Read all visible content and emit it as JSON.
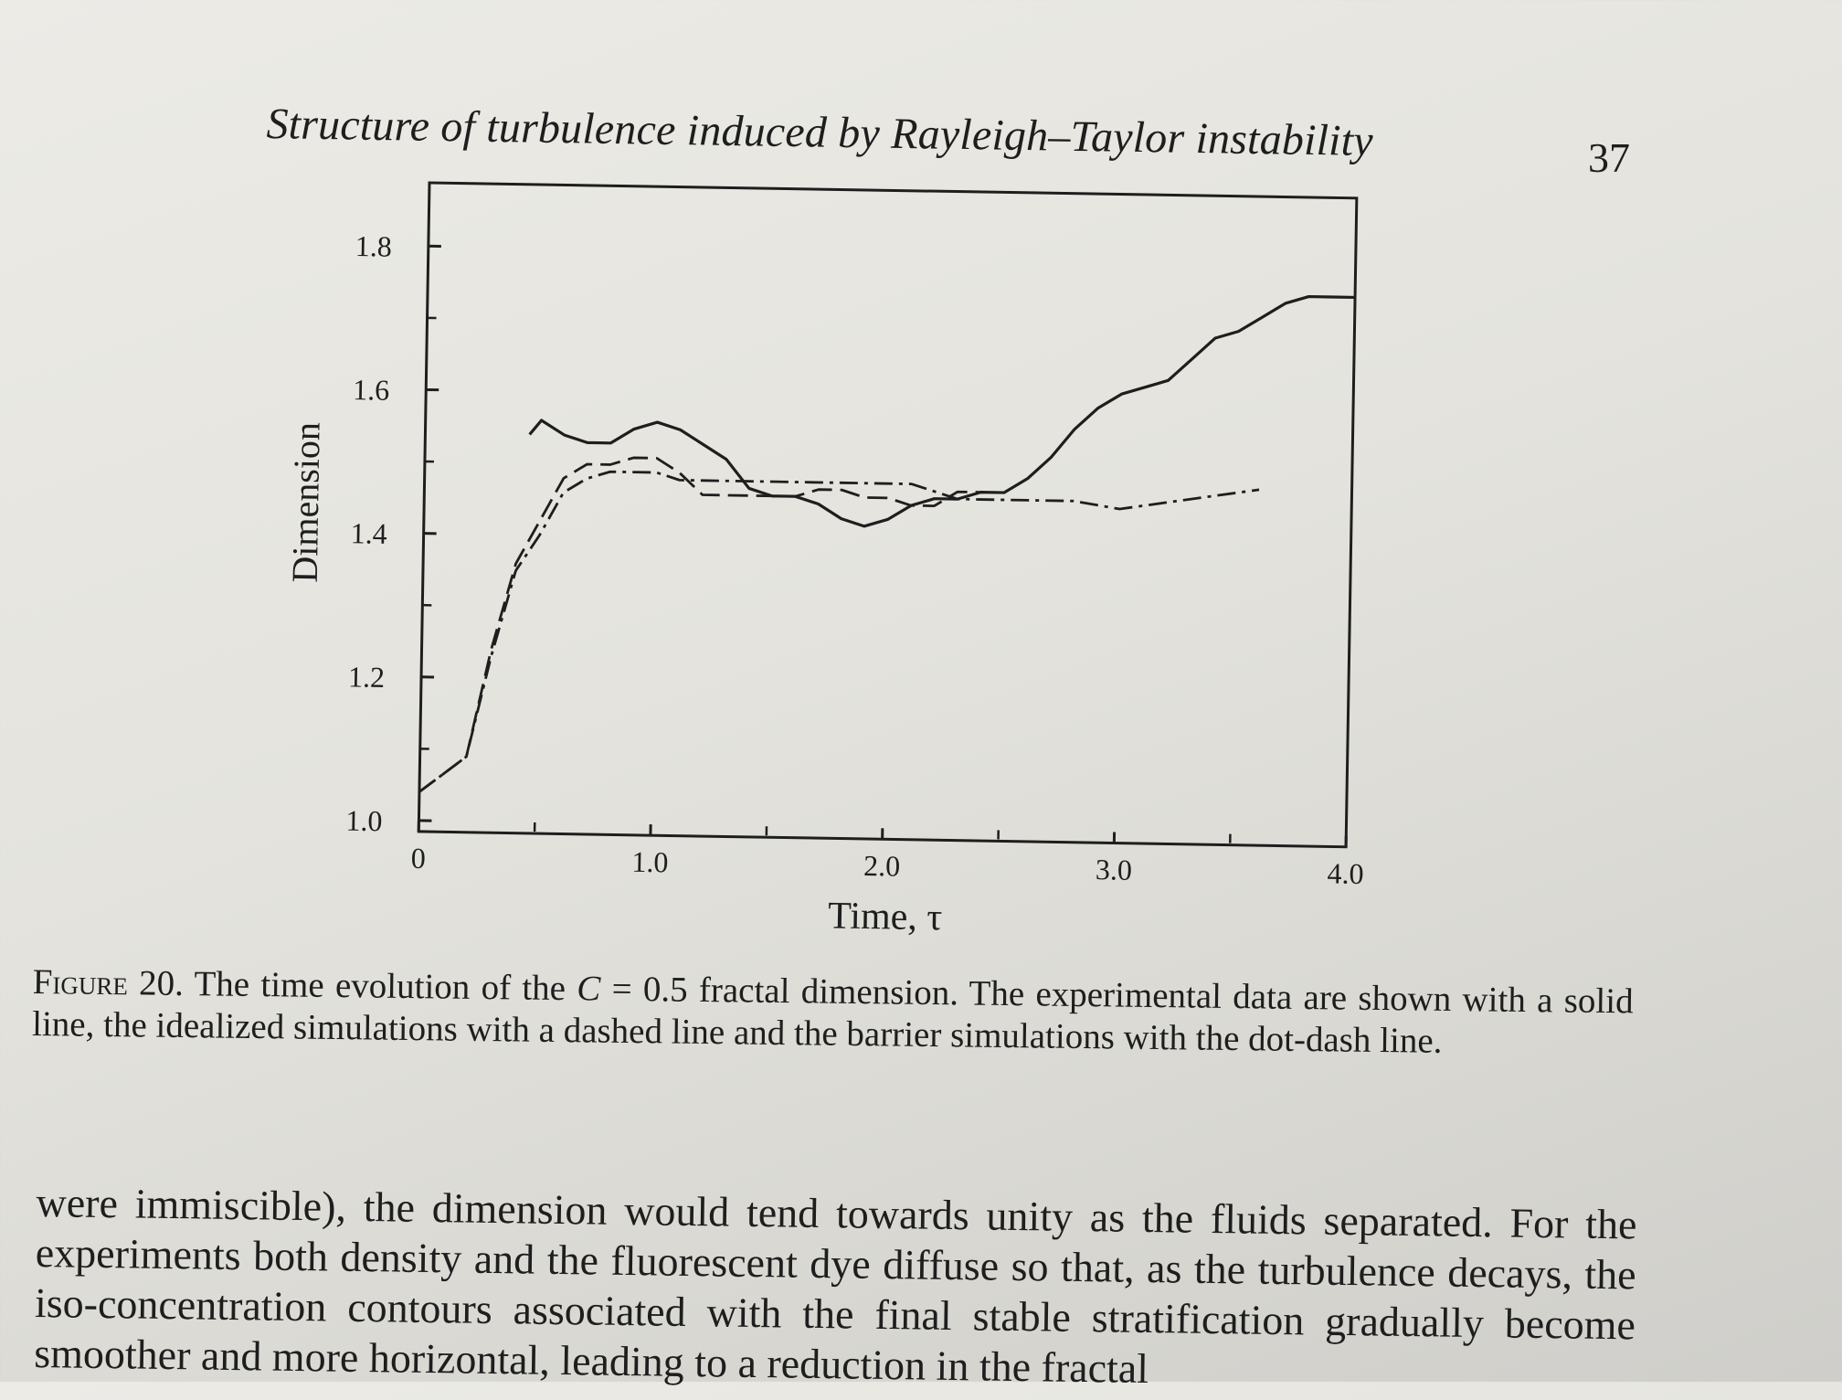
{
  "running_head": "Structure of turbulence induced by Rayleigh–Taylor instability",
  "page_number": "37",
  "caption": {
    "label": "Figure 20.",
    "text_before": " The time evolution of the ",
    "variable": "C",
    "text_after": " = 0.5 fractal dimension. The experimental data are shown with a solid line, the idealized simulations with a dashed line and the barrier simulations with the dot-dash line."
  },
  "body_text": "were immiscible), the dimension would tend towards unity as the fluids separated. For the experiments both density and the fluorescent dye diffuse so that, as the turbulence decays, the iso-concentration contours associated with the final stable stratification gradually become smoother and more horizontal, leading to a reduction in the fractal",
  "chart_data": {
    "type": "line",
    "title": "",
    "xlabel": "Time, τ",
    "ylabel": "Dimension",
    "xlim": [
      0,
      4.0
    ],
    "ylim": [
      1.0,
      1.85
    ],
    "x_ticks": [
      0,
      1.0,
      2.0,
      3.0,
      4.0
    ],
    "x_tick_labels": [
      "0",
      "1.0",
      "2.0",
      "3.0",
      "4.0"
    ],
    "y_ticks": [
      1.0,
      1.2,
      1.4,
      1.6,
      1.8
    ],
    "y_tick_labels": [
      "1.0",
      "1.2",
      "1.4",
      "1.6",
      "1.8"
    ],
    "grid": false,
    "legend": "none",
    "series": [
      {
        "style": "solid",
        "x": [
          0.45,
          0.5,
          0.6,
          0.7,
          0.8,
          0.9,
          1.0,
          1.1,
          1.2,
          1.3,
          1.4,
          1.5,
          1.6,
          1.7,
          1.8,
          1.9,
          2.0,
          2.1,
          2.2,
          2.3,
          2.4,
          2.5,
          2.6,
          2.7,
          2.8,
          2.9,
          3.0,
          3.1,
          3.2,
          3.3,
          3.4,
          3.5,
          3.6,
          3.7,
          3.8,
          3.9,
          4.0
        ],
        "y": [
          1.54,
          1.56,
          1.54,
          1.53,
          1.53,
          1.55,
          1.56,
          1.55,
          1.53,
          1.51,
          1.47,
          1.46,
          1.46,
          1.45,
          1.43,
          1.42,
          1.43,
          1.45,
          1.46,
          1.46,
          1.47,
          1.47,
          1.49,
          1.52,
          1.56,
          1.59,
          1.61,
          1.62,
          1.63,
          1.66,
          1.69,
          1.7,
          1.72,
          1.74,
          1.75,
          1.75,
          1.75
        ]
      },
      {
        "style": "dashed",
        "x": [
          0,
          0.2,
          0.3,
          0.4,
          0.5,
          0.6,
          0.7,
          0.8,
          0.9,
          1.0,
          1.1,
          1.2,
          1.3,
          1.4,
          1.5,
          1.6,
          1.7,
          1.8,
          1.9,
          2.0,
          2.1,
          2.2,
          2.3,
          2.4
        ],
        "y": [
          1.04,
          1.09,
          1.24,
          1.36,
          1.42,
          1.48,
          1.5,
          1.5,
          1.51,
          1.51,
          1.49,
          1.46,
          1.46,
          1.46,
          1.46,
          1.46,
          1.47,
          1.47,
          1.46,
          1.46,
          1.45,
          1.45,
          1.47,
          1.47
        ]
      },
      {
        "style": "dot-dash",
        "x": [
          0,
          0.2,
          0.3,
          0.4,
          0.5,
          0.6,
          0.7,
          0.8,
          0.9,
          1.0,
          1.1,
          1.2,
          1.4,
          1.6,
          1.8,
          2.0,
          2.1,
          2.2,
          2.3,
          2.4,
          2.5,
          2.6,
          2.8,
          3.0,
          3.2,
          3.4,
          3.6
        ],
        "y": [
          1.04,
          1.09,
          1.23,
          1.35,
          1.4,
          1.46,
          1.48,
          1.49,
          1.49,
          1.49,
          1.48,
          1.48,
          1.48,
          1.48,
          1.48,
          1.48,
          1.48,
          1.47,
          1.46,
          1.46,
          1.46,
          1.46,
          1.46,
          1.45,
          1.46,
          1.47,
          1.48
        ]
      }
    ]
  }
}
